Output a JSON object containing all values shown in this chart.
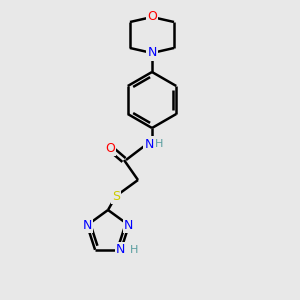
{
  "bg_color": "#e8e8e8",
  "bond_color": "#000000",
  "line_width": 1.8,
  "atom_colors": {
    "O": "#ff0000",
    "N": "#0000ff",
    "S": "#cccc00",
    "NH_teal": "#5a9ea0",
    "C": "#000000"
  },
  "font_size": 9,
  "font_size_small": 8
}
